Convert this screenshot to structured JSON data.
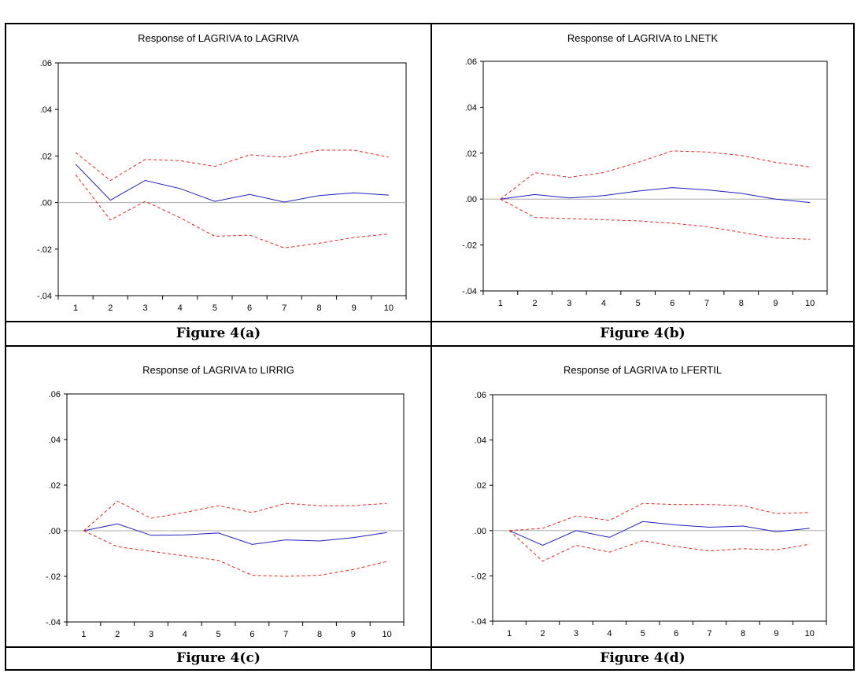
{
  "chart_data": [
    {
      "type": "line",
      "title": "Response of LAGRIVA to LAGRIVA",
      "caption": "Figure 4(a)",
      "x": [
        1,
        2,
        3,
        4,
        5,
        6,
        7,
        8,
        9,
        10
      ],
      "ylim": [
        -0.04,
        0.06
      ],
      "yticks": [
        ".06",
        ".04",
        ".02",
        ".00",
        "-.02",
        "-.04"
      ],
      "series": [
        {
          "role": "response",
          "style": "solid",
          "color": "#1f1fbf",
          "values": [
            0.0165,
            0.001,
            0.0095,
            0.006,
            0.0005,
            0.0035,
            0.0002,
            0.003,
            0.0042,
            0.0032
          ]
        },
        {
          "role": "upper-band",
          "style": "dashed",
          "color": "#e8271f",
          "values": [
            0.0215,
            0.0095,
            0.0185,
            0.018,
            0.0155,
            0.0205,
            0.0195,
            0.0225,
            0.0225,
            0.0195
          ]
        },
        {
          "role": "lower-band",
          "style": "dashed",
          "color": "#e8271f",
          "values": [
            0.012,
            -0.0075,
            0.0005,
            -0.0065,
            -0.0145,
            -0.014,
            -0.0195,
            -0.0175,
            -0.015,
            -0.0135
          ]
        }
      ]
    },
    {
      "type": "line",
      "title": "Response of LAGRIVA to LNETK",
      "caption": "Figure 4(b)",
      "x": [
        1,
        2,
        3,
        4,
        5,
        6,
        7,
        8,
        9,
        10
      ],
      "ylim": [
        -0.04,
        0.06
      ],
      "yticks": [
        ".06",
        ".04",
        ".02",
        ".00",
        "-.02",
        "-.04"
      ],
      "series": [
        {
          "role": "response",
          "style": "solid",
          "color": "#1f1fbf",
          "values": [
            0.0,
            0.002,
            0.0005,
            0.0015,
            0.0035,
            0.005,
            0.004,
            0.0025,
            0.0,
            -0.0015
          ]
        },
        {
          "role": "upper-band",
          "style": "dashed",
          "color": "#e8271f",
          "values": [
            0.0,
            0.0115,
            0.0095,
            0.0115,
            0.016,
            0.021,
            0.0205,
            0.019,
            0.016,
            0.014
          ]
        },
        {
          "role": "lower-band",
          "style": "dashed",
          "color": "#e8271f",
          "values": [
            0.0,
            -0.008,
            -0.0085,
            -0.009,
            -0.0095,
            -0.0105,
            -0.012,
            -0.0145,
            -0.017,
            -0.0175
          ]
        }
      ]
    },
    {
      "type": "line",
      "title": "Response of LAGRIVA to LIRRIG",
      "caption": "Figure 4(c)",
      "x": [
        1,
        2,
        3,
        4,
        5,
        6,
        7,
        8,
        9,
        10
      ],
      "ylim": [
        -0.04,
        0.06
      ],
      "yticks": [
        ".06",
        ".04",
        ".02",
        ".00",
        "-.02",
        "-.04"
      ],
      "series": [
        {
          "role": "response",
          "style": "solid",
          "color": "#1f1fbf",
          "values": [
            0.0,
            0.003,
            -0.002,
            -0.0018,
            -0.001,
            -0.006,
            -0.004,
            -0.0045,
            -0.003,
            -0.0008
          ]
        },
        {
          "role": "upper-band",
          "style": "dashed",
          "color": "#e8271f",
          "values": [
            0.0,
            0.013,
            0.0055,
            0.008,
            0.011,
            0.008,
            0.012,
            0.011,
            0.011,
            0.012
          ]
        },
        {
          "role": "lower-band",
          "style": "dashed",
          "color": "#e8271f",
          "values": [
            0.0,
            -0.007,
            -0.009,
            -0.011,
            -0.013,
            -0.0195,
            -0.02,
            -0.0195,
            -0.017,
            -0.0135
          ]
        }
      ]
    },
    {
      "type": "line",
      "title": "Response of LAGRIVA to LFERTIL",
      "caption": "Figure 4(d)",
      "x": [
        1,
        2,
        3,
        4,
        5,
        6,
        7,
        8,
        9,
        10
      ],
      "ylim": [
        -0.04,
        0.06
      ],
      "yticks": [
        ".06",
        ".04",
        ".02",
        ".00",
        "-.02",
        "-.04"
      ],
      "series": [
        {
          "role": "response",
          "style": "solid",
          "color": "#1f1fbf",
          "values": [
            0.0,
            -0.0065,
            0.0,
            -0.003,
            0.004,
            0.0025,
            0.0015,
            0.002,
            -0.0005,
            0.001
          ]
        },
        {
          "role": "upper-band",
          "style": "dashed",
          "color": "#e8271f",
          "values": [
            0.0,
            0.001,
            0.0065,
            0.0045,
            0.012,
            0.0115,
            0.0115,
            0.011,
            0.0075,
            0.008
          ]
        },
        {
          "role": "lower-band",
          "style": "dashed",
          "color": "#e8271f",
          "values": [
            0.0,
            -0.0135,
            -0.0065,
            -0.0095,
            -0.0045,
            -0.007,
            -0.009,
            -0.008,
            -0.0085,
            -0.006
          ]
        }
      ]
    }
  ]
}
